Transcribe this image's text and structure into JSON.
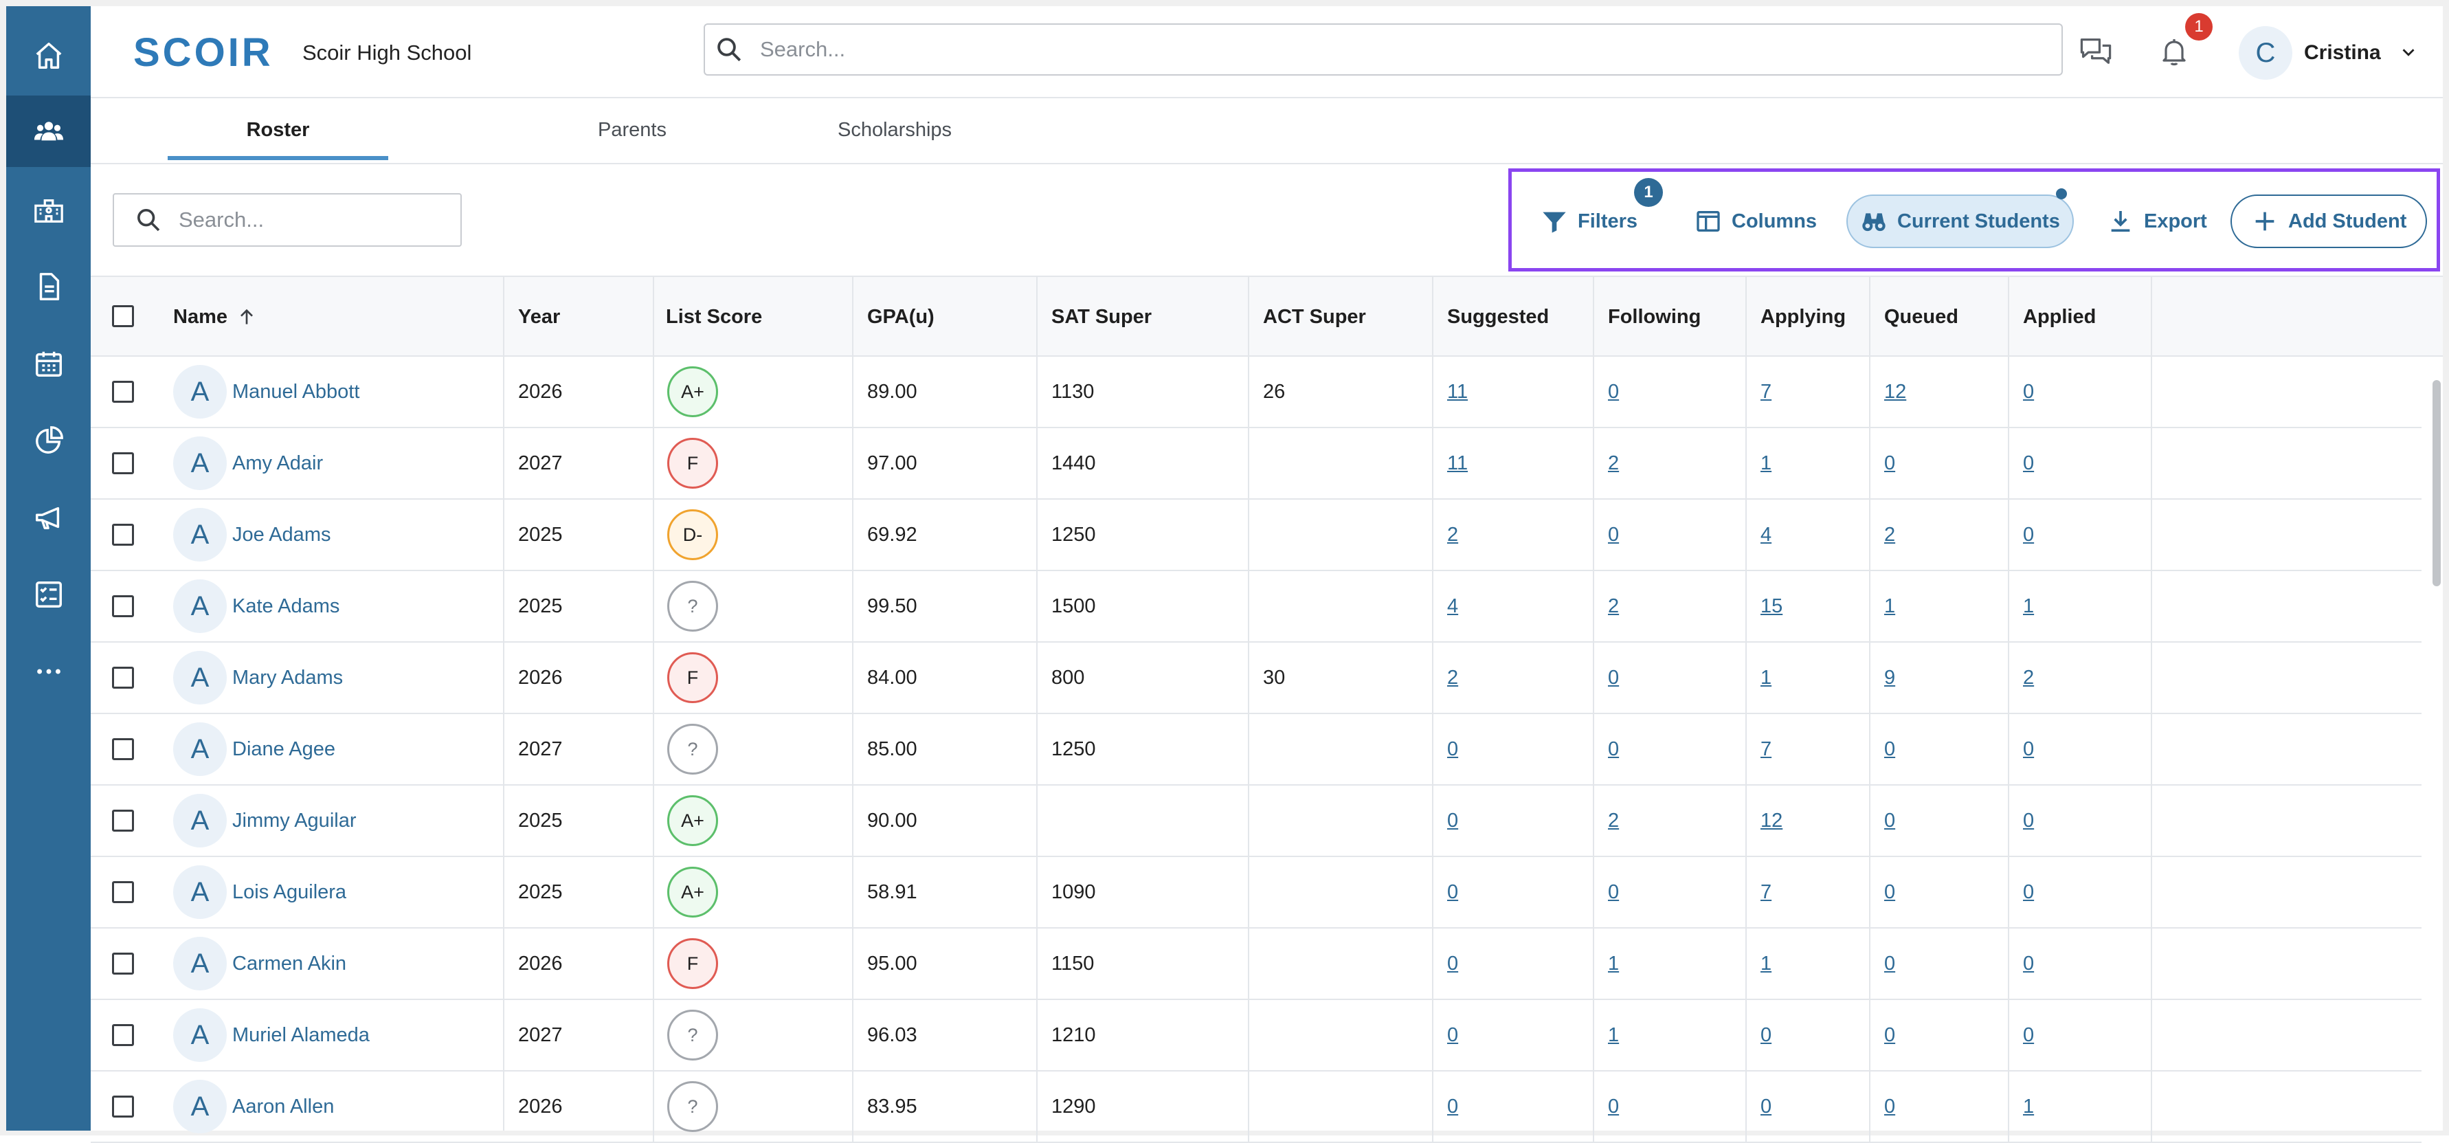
{
  "sidebar": {
    "items": [
      {
        "icon": "home-icon",
        "active": false
      },
      {
        "icon": "people-icon",
        "active": true
      },
      {
        "icon": "school-icon",
        "active": false
      },
      {
        "icon": "document-icon",
        "active": false
      },
      {
        "icon": "calendar-icon",
        "active": false
      },
      {
        "icon": "pie-chart-icon",
        "active": false
      },
      {
        "icon": "megaphone-icon",
        "active": false
      },
      {
        "icon": "checklist-icon",
        "active": false
      },
      {
        "icon": "more-icon",
        "active": false
      }
    ]
  },
  "header": {
    "logo": "SCOIR",
    "school_name": "Scoir High School",
    "search_placeholder": "Search...",
    "notification_count": "1",
    "user_initial": "C",
    "user_name": "Cristina"
  },
  "tabs": [
    {
      "label": "Roster",
      "active": true
    },
    {
      "label": "Parents",
      "active": false
    },
    {
      "label": "Scholarships",
      "active": false
    }
  ],
  "toolbar": {
    "search_placeholder": "Search...",
    "filters_label": "Filters",
    "filters_count": "1",
    "columns_label": "Columns",
    "current_students_label": "Current Students",
    "export_label": "Export",
    "add_student_label": "Add Student"
  },
  "table": {
    "columns": [
      "Name",
      "Year",
      "List Score",
      "GPA(u)",
      "SAT Super",
      "ACT Super",
      "Suggested",
      "Following",
      "Applying",
      "Queued",
      "Applied"
    ],
    "rows": [
      {
        "name": "Manuel Abbott",
        "year": "2026",
        "score": "A+",
        "grade": "green",
        "gpa": "89.00",
        "sat": "1130",
        "act": "26",
        "suggested": "11",
        "following": "0",
        "applying": "7",
        "queued": "12",
        "applied": "0"
      },
      {
        "name": "Amy Adair",
        "year": "2027",
        "score": "F",
        "grade": "red",
        "gpa": "97.00",
        "sat": "1440",
        "act": "",
        "suggested": "11",
        "following": "2",
        "applying": "1",
        "queued": "0",
        "applied": "0"
      },
      {
        "name": "Joe Adams",
        "year": "2025",
        "score": "D-",
        "grade": "orange",
        "gpa": "69.92",
        "sat": "1250",
        "act": "",
        "suggested": "2",
        "following": "0",
        "applying": "4",
        "queued": "2",
        "applied": "0"
      },
      {
        "name": "Kate Adams",
        "year": "2025",
        "score": "?",
        "grade": "unknown",
        "gpa": "99.50",
        "sat": "1500",
        "act": "",
        "suggested": "4",
        "following": "2",
        "applying": "15",
        "queued": "1",
        "applied": "1"
      },
      {
        "name": "Mary Adams",
        "year": "2026",
        "score": "F",
        "grade": "red",
        "gpa": "84.00",
        "sat": "800",
        "act": "30",
        "suggested": "2",
        "following": "0",
        "applying": "1",
        "queued": "9",
        "applied": "2"
      },
      {
        "name": "Diane Agee",
        "year": "2027",
        "score": "?",
        "grade": "unknown",
        "gpa": "85.00",
        "sat": "1250",
        "act": "",
        "suggested": "0",
        "following": "0",
        "applying": "7",
        "queued": "0",
        "applied": "0"
      },
      {
        "name": "Jimmy Aguilar",
        "year": "2025",
        "score": "A+",
        "grade": "green",
        "gpa": "90.00",
        "sat": "",
        "act": "",
        "suggested": "0",
        "following": "2",
        "applying": "12",
        "queued": "0",
        "applied": "0"
      },
      {
        "name": "Lois Aguilera",
        "year": "2025",
        "score": "A+",
        "grade": "green",
        "gpa": "58.91",
        "sat": "1090",
        "act": "",
        "suggested": "0",
        "following": "0",
        "applying": "7",
        "queued": "0",
        "applied": "0"
      },
      {
        "name": "Carmen Akin",
        "year": "2026",
        "score": "F",
        "grade": "red",
        "gpa": "95.00",
        "sat": "1150",
        "act": "",
        "suggested": "0",
        "following": "1",
        "applying": "1",
        "queued": "0",
        "applied": "0"
      },
      {
        "name": "Muriel Alameda",
        "year": "2027",
        "score": "?",
        "grade": "unknown",
        "gpa": "96.03",
        "sat": "1210",
        "act": "",
        "suggested": "0",
        "following": "1",
        "applying": "0",
        "queued": "0",
        "applied": "0"
      },
      {
        "name": "Aaron Allen",
        "year": "2026",
        "score": "?",
        "grade": "unknown",
        "gpa": "83.95",
        "sat": "1290",
        "act": "",
        "suggested": "0",
        "following": "0",
        "applying": "0",
        "queued": "0",
        "applied": "1"
      }
    ]
  }
}
